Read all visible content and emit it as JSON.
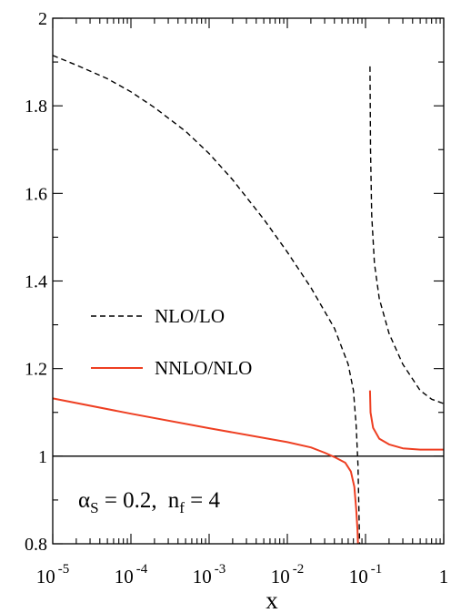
{
  "chart_data": {
    "type": "line",
    "title": "",
    "xlabel": "x",
    "ylabel": "",
    "xscale": "log",
    "xlim": [
      1e-05,
      1
    ],
    "ylim": [
      0.8,
      2.0
    ],
    "xticks": [
      {
        "value": 1e-05,
        "base": "10",
        "exp": "-5"
      },
      {
        "value": 0.0001,
        "base": "10",
        "exp": "-4"
      },
      {
        "value": 0.001,
        "base": "10",
        "exp": "-3"
      },
      {
        "value": 0.01,
        "base": "10",
        "exp": "-2"
      },
      {
        "value": 0.1,
        "base": "10",
        "exp": "-1"
      },
      {
        "value": 1,
        "base": "1",
        "exp": ""
      }
    ],
    "yticks": [
      {
        "value": 0.8,
        "label": "0.8"
      },
      {
        "value": 1.0,
        "label": "1"
      },
      {
        "value": 1.2,
        "label": "1.2"
      },
      {
        "value": 1.4,
        "label": "1.4"
      },
      {
        "value": 1.6,
        "label": "1.6"
      },
      {
        "value": 1.8,
        "label": "1.8"
      },
      {
        "value": 2.0,
        "label": "2"
      }
    ],
    "reference_line": 1.0,
    "grid": false,
    "legend_position": "left-center",
    "annotation": {
      "alpha_symbol": "α",
      "alpha_sub": "S",
      "alpha_value": " = 0.2,",
      "nf_symbol": "n",
      "nf_sub": "f",
      "nf_value": " = 4"
    },
    "series": [
      {
        "name": "NLO/LO",
        "color": "#000000",
        "style": "dashed",
        "segments": [
          [
            [
              1e-05,
              1.915
            ],
            [
              2e-05,
              1.893
            ],
            [
              5e-05,
              1.862
            ],
            [
              0.0001,
              1.832
            ],
            [
              0.0002,
              1.796
            ],
            [
              0.0005,
              1.742
            ],
            [
              0.001,
              1.691
            ],
            [
              0.002,
              1.631
            ],
            [
              0.005,
              1.541
            ],
            [
              0.01,
              1.466
            ],
            [
              0.02,
              1.385
            ],
            [
              0.04,
              1.292
            ],
            [
              0.06,
              1.21
            ],
            [
              0.07,
              1.15
            ],
            [
              0.076,
              1.07
            ],
            [
              0.08,
              0.98
            ],
            [
              0.083,
              0.85
            ],
            [
              0.084,
              0.8
            ]
          ],
          [
            [
              0.114,
              1.89
            ],
            [
              0.116,
              1.7
            ],
            [
              0.12,
              1.55
            ],
            [
              0.13,
              1.44
            ],
            [
              0.15,
              1.36
            ],
            [
              0.2,
              1.28
            ],
            [
              0.3,
              1.21
            ],
            [
              0.5,
              1.15
            ],
            [
              0.7,
              1.13
            ],
            [
              1.0,
              1.12
            ]
          ]
        ]
      },
      {
        "name": "NNLO/NLO",
        "color": "#ee3f22",
        "style": "solid",
        "segments": [
          [
            [
              1e-05,
              1.132
            ],
            [
              0.0001,
              1.097
            ],
            [
              0.001,
              1.064
            ],
            [
              0.01,
              1.032
            ],
            [
              0.02,
              1.02
            ],
            [
              0.03,
              1.008
            ],
            [
              0.04,
              0.998
            ],
            [
              0.055,
              0.985
            ],
            [
              0.065,
              0.965
            ],
            [
              0.072,
              0.93
            ],
            [
              0.076,
              0.88
            ],
            [
              0.079,
              0.83
            ],
            [
              0.08,
              0.8
            ]
          ],
          [
            [
              0.114,
              1.15
            ],
            [
              0.116,
              1.1
            ],
            [
              0.125,
              1.065
            ],
            [
              0.15,
              1.04
            ],
            [
              0.2,
              1.027
            ],
            [
              0.3,
              1.018
            ],
            [
              0.5,
              1.015
            ],
            [
              1.0,
              1.015
            ]
          ]
        ]
      }
    ]
  }
}
